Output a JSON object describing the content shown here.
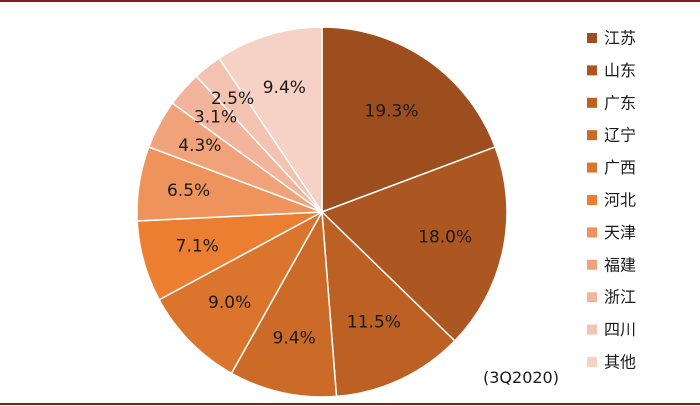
{
  "chart_data": {
    "type": "pie",
    "title": "",
    "note": "(3Q2020)",
    "legend_position": "right",
    "start_angle_deg": 0,
    "direction": "clockwise",
    "slices": [
      {
        "label": "江苏",
        "value": 19.3,
        "display": "19.3%",
        "color": "#9C4E1F"
      },
      {
        "label": "山东",
        "value": 18.0,
        "display": "18.0%",
        "color": "#AC5721"
      },
      {
        "label": "广东",
        "value": 11.5,
        "display": "11.5%",
        "color": "#BC6024"
      },
      {
        "label": "辽宁",
        "value": 9.4,
        "display": "9.4%",
        "color": "#CC6A28"
      },
      {
        "label": "广西",
        "value": 9.0,
        "display": "9.0%",
        "color": "#DB742C"
      },
      {
        "label": "河北",
        "value": 7.1,
        "display": "7.1%",
        "color": "#EC7E32"
      },
      {
        "label": "天津",
        "value": 6.5,
        "display": "6.5%",
        "color": "#EE935C"
      },
      {
        "label": "福建",
        "value": 4.3,
        "display": "4.3%",
        "color": "#F0A37A"
      },
      {
        "label": "浙江",
        "value": 3.1,
        "display": "3.1%",
        "color": "#F2B49A"
      },
      {
        "label": "四川",
        "value": 2.5,
        "display": "2.5%",
        "color": "#F4C2B1"
      },
      {
        "label": "其他",
        "value": 9.4,
        "display": "9.4%",
        "color": "#F6D2C6"
      }
    ]
  },
  "frame": {
    "rule_color": "#8B1A1A"
  }
}
